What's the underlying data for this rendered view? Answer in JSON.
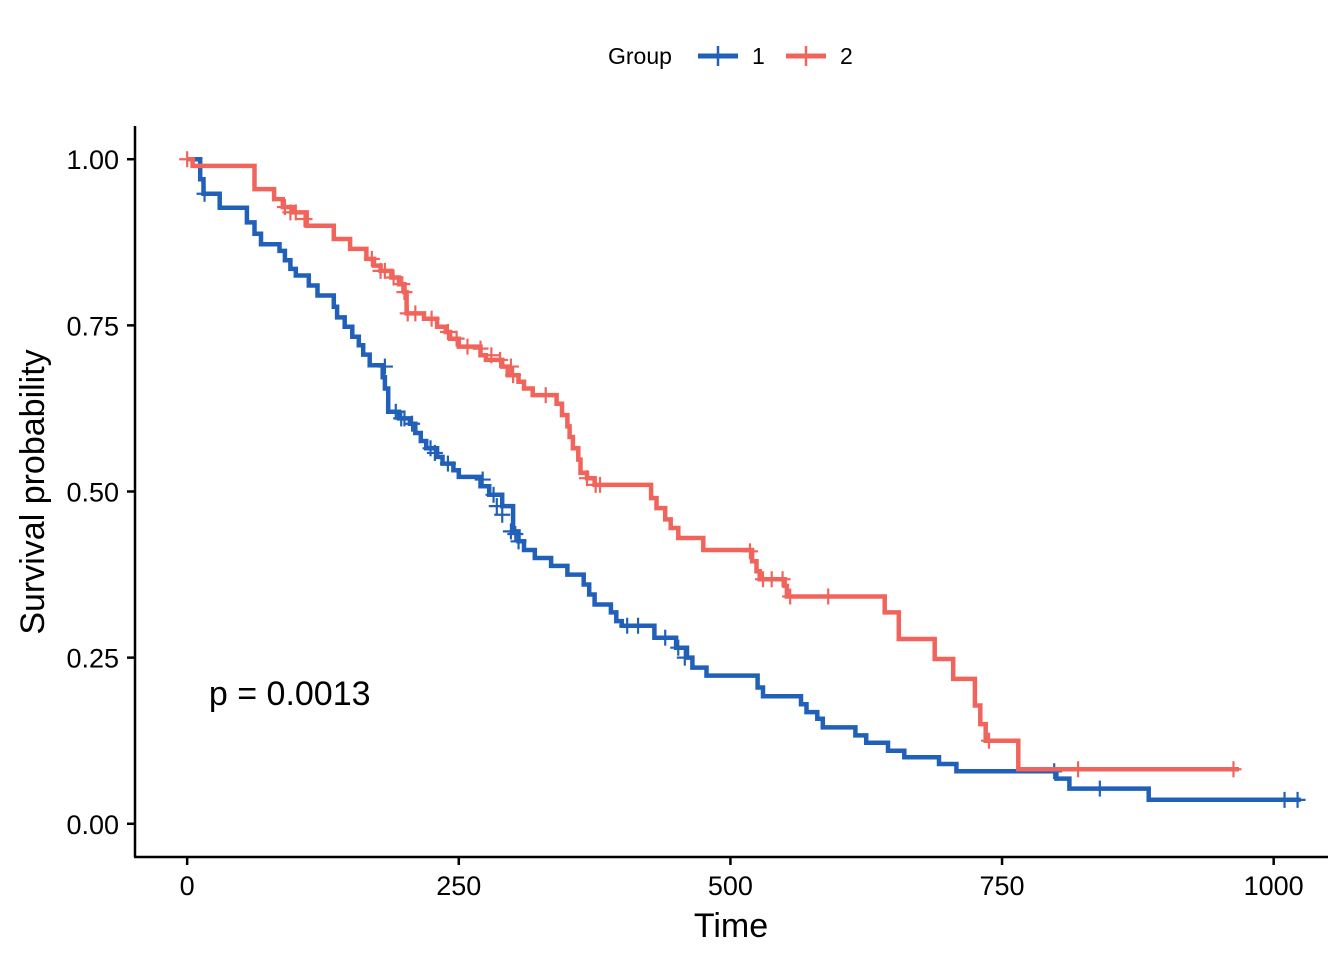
{
  "chart_data": {
    "type": "line",
    "subtype": "kaplan-meier-step",
    "xlabel": "Time",
    "ylabel": "Survival probability",
    "xlim": [
      -48,
      1050
    ],
    "ylim": [
      -0.05,
      1.05
    ],
    "x_ticks": [
      0,
      250,
      500,
      750,
      1000
    ],
    "x_tick_labels": [
      "0",
      "250",
      "500",
      "750",
      "1000"
    ],
    "y_ticks": [
      0,
      0.25,
      0.5,
      0.75,
      1.0
    ],
    "y_tick_labels": [
      "0.00",
      "0.25",
      "0.50",
      "0.75",
      "1.00"
    ],
    "grid": false,
    "legend": {
      "title": "Group",
      "position": "top"
    },
    "annotation": {
      "text": "p = 0.0013",
      "x": 20,
      "y": 0.2
    },
    "series": [
      {
        "name": "1",
        "color": "#2160B8",
        "steps": [
          [
            0,
            1.0
          ],
          [
            12,
            0.97
          ],
          [
            15,
            0.948
          ],
          [
            30,
            0.927
          ],
          [
            55,
            0.905
          ],
          [
            62,
            0.888
          ],
          [
            68,
            0.872
          ],
          [
            85,
            0.862
          ],
          [
            90,
            0.848
          ],
          [
            95,
            0.835
          ],
          [
            100,
            0.825
          ],
          [
            112,
            0.81
          ],
          [
            120,
            0.795
          ],
          [
            135,
            0.778
          ],
          [
            138,
            0.762
          ],
          [
            145,
            0.748
          ],
          [
            152,
            0.733
          ],
          [
            158,
            0.72
          ],
          [
            162,
            0.706
          ],
          [
            168,
            0.69
          ],
          [
            180,
            0.672
          ],
          [
            182,
            0.655
          ],
          [
            185,
            0.62
          ],
          [
            195,
            0.61
          ],
          [
            205,
            0.602
          ],
          [
            210,
            0.588
          ],
          [
            215,
            0.576
          ],
          [
            220,
            0.565
          ],
          [
            230,
            0.552
          ],
          [
            235,
            0.542
          ],
          [
            245,
            0.532
          ],
          [
            250,
            0.522
          ],
          [
            270,
            0.508
          ],
          [
            278,
            0.495
          ],
          [
            290,
            0.478
          ],
          [
            300,
            0.44
          ],
          [
            305,
            0.425
          ],
          [
            310,
            0.412
          ],
          [
            320,
            0.4
          ],
          [
            335,
            0.388
          ],
          [
            350,
            0.375
          ],
          [
            365,
            0.36
          ],
          [
            370,
            0.345
          ],
          [
            375,
            0.33
          ],
          [
            390,
            0.318
          ],
          [
            395,
            0.305
          ],
          [
            400,
            0.298
          ],
          [
            430,
            0.28
          ],
          [
            450,
            0.265
          ],
          [
            460,
            0.25
          ],
          [
            465,
            0.235
          ],
          [
            478,
            0.223
          ],
          [
            525,
            0.205
          ],
          [
            530,
            0.192
          ],
          [
            565,
            0.18
          ],
          [
            570,
            0.168
          ],
          [
            580,
            0.158
          ],
          [
            585,
            0.145
          ],
          [
            615,
            0.133
          ],
          [
            625,
            0.122
          ],
          [
            645,
            0.11
          ],
          [
            660,
            0.1
          ],
          [
            692,
            0.09
          ],
          [
            708,
            0.079
          ],
          [
            800,
            0.068
          ],
          [
            812,
            0.053
          ],
          [
            885,
            0.036
          ],
          [
            1025,
            0.036
          ]
        ],
        "censored": [
          [
            16,
            0.948
          ],
          [
            182,
            0.688
          ],
          [
            192,
            0.62
          ],
          [
            197,
            0.61
          ],
          [
            200,
            0.61
          ],
          [
            207,
            0.602
          ],
          [
            224,
            0.565
          ],
          [
            228,
            0.558
          ],
          [
            240,
            0.542
          ],
          [
            272,
            0.518
          ],
          [
            282,
            0.495
          ],
          [
            285,
            0.478
          ],
          [
            290,
            0.465
          ],
          [
            298,
            0.44
          ],
          [
            302,
            0.436
          ],
          [
            305,
            0.425
          ],
          [
            405,
            0.298
          ],
          [
            415,
            0.298
          ],
          [
            440,
            0.28
          ],
          [
            452,
            0.265
          ],
          [
            458,
            0.25
          ],
          [
            798,
            0.079
          ],
          [
            840,
            0.053
          ],
          [
            1010,
            0.036
          ],
          [
            1022,
            0.036
          ]
        ]
      },
      {
        "name": "2",
        "color": "#F0645C",
        "steps": [
          [
            0,
            1.0
          ],
          [
            5,
            0.99
          ],
          [
            62,
            0.955
          ],
          [
            80,
            0.94
          ],
          [
            88,
            0.928
          ],
          [
            98,
            0.92
          ],
          [
            110,
            0.9
          ],
          [
            135,
            0.88
          ],
          [
            150,
            0.865
          ],
          [
            165,
            0.85
          ],
          [
            172,
            0.84
          ],
          [
            178,
            0.832
          ],
          [
            188,
            0.822
          ],
          [
            195,
            0.812
          ],
          [
            200,
            0.8
          ],
          [
            202,
            0.768
          ],
          [
            218,
            0.76
          ],
          [
            230,
            0.748
          ],
          [
            238,
            0.74
          ],
          [
            242,
            0.73
          ],
          [
            250,
            0.718
          ],
          [
            270,
            0.705
          ],
          [
            275,
            0.698
          ],
          [
            290,
            0.688
          ],
          [
            295,
            0.675
          ],
          [
            305,
            0.665
          ],
          [
            310,
            0.655
          ],
          [
            318,
            0.645
          ],
          [
            340,
            0.632
          ],
          [
            345,
            0.615
          ],
          [
            350,
            0.598
          ],
          [
            352,
            0.582
          ],
          [
            355,
            0.565
          ],
          [
            360,
            0.548
          ],
          [
            362,
            0.528
          ],
          [
            368,
            0.52
          ],
          [
            375,
            0.51
          ],
          [
            427,
            0.49
          ],
          [
            432,
            0.475
          ],
          [
            440,
            0.458
          ],
          [
            445,
            0.445
          ],
          [
            452,
            0.43
          ],
          [
            475,
            0.412
          ],
          [
            520,
            0.395
          ],
          [
            524,
            0.38
          ],
          [
            527,
            0.368
          ],
          [
            550,
            0.358
          ],
          [
            552,
            0.342
          ],
          [
            642,
            0.318
          ],
          [
            655,
            0.278
          ],
          [
            688,
            0.248
          ],
          [
            705,
            0.218
          ],
          [
            725,
            0.178
          ],
          [
            730,
            0.15
          ],
          [
            735,
            0.125
          ],
          [
            765,
            0.082
          ],
          [
            968,
            0.082
          ]
        ],
        "censored": [
          [
            0,
            1.0
          ],
          [
            90,
            0.928
          ],
          [
            95,
            0.92
          ],
          [
            100,
            0.92
          ],
          [
            108,
            0.91
          ],
          [
            170,
            0.85
          ],
          [
            178,
            0.832
          ],
          [
            182,
            0.832
          ],
          [
            190,
            0.822
          ],
          [
            198,
            0.812
          ],
          [
            200,
            0.8
          ],
          [
            203,
            0.768
          ],
          [
            210,
            0.768
          ],
          [
            225,
            0.76
          ],
          [
            240,
            0.74
          ],
          [
            248,
            0.73
          ],
          [
            258,
            0.718
          ],
          [
            270,
            0.715
          ],
          [
            280,
            0.705
          ],
          [
            288,
            0.698
          ],
          [
            298,
            0.688
          ],
          [
            300,
            0.675
          ],
          [
            330,
            0.645
          ],
          [
            368,
            0.52
          ],
          [
            376,
            0.51
          ],
          [
            380,
            0.51
          ],
          [
            518,
            0.41
          ],
          [
            530,
            0.368
          ],
          [
            538,
            0.368
          ],
          [
            548,
            0.368
          ],
          [
            555,
            0.342
          ],
          [
            590,
            0.342
          ],
          [
            738,
            0.125
          ],
          [
            820,
            0.082
          ],
          [
            963,
            0.082
          ]
        ]
      }
    ]
  }
}
